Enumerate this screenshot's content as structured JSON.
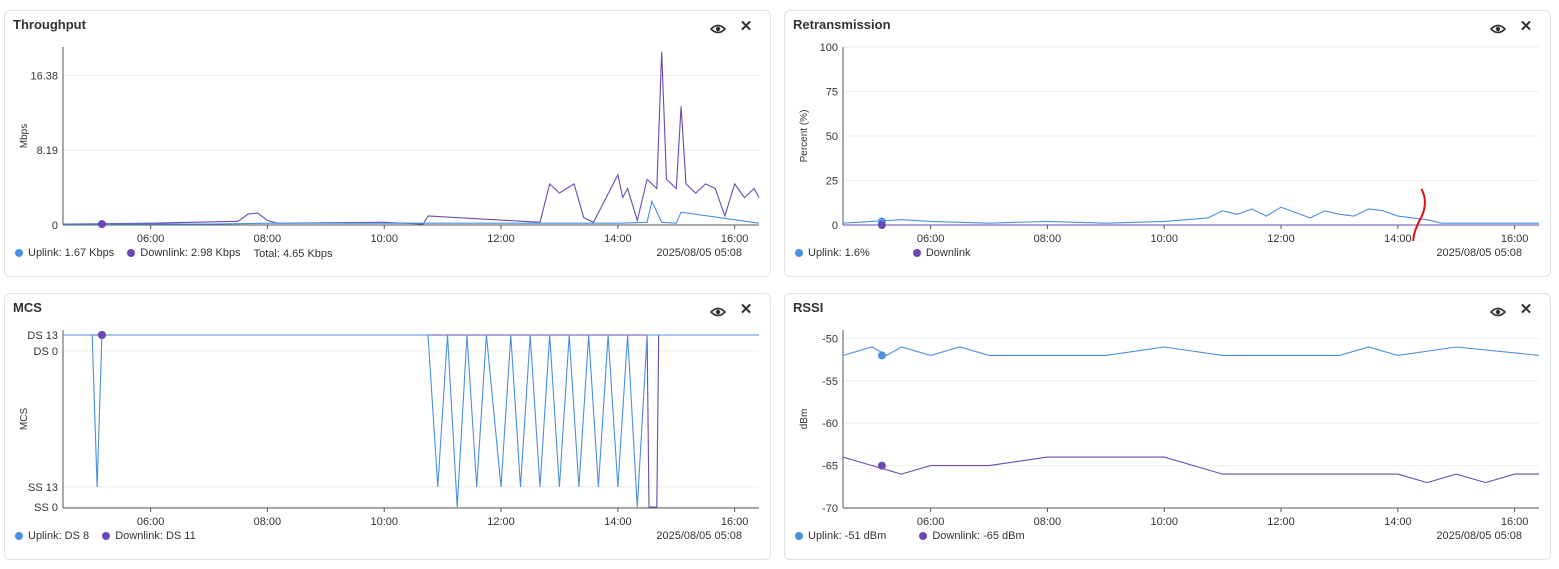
{
  "colors": {
    "uplink": "#4a90e2",
    "downlink": "#6b48b4",
    "annotation": "#e01010"
  },
  "x_ticks": [
    "06:00",
    "08:00",
    "10:00",
    "12:00",
    "14:00",
    "16:00"
  ],
  "panels": {
    "throughput": {
      "title": "Throughput",
      "ylabel": "Mbps",
      "y_ticks": [
        "0",
        "8.19",
        "16.38"
      ],
      "legend": {
        "uplink": "Uplink: 1.67 Kbps",
        "downlink": "Downlink: 2.98 Kbps",
        "total": "Total: 4.65 Kbps"
      },
      "timestamp": "2025/08/05 05:08"
    },
    "retransmission": {
      "title": "Retransmission",
      "ylabel": "Percent (%)",
      "y_ticks": [
        "0",
        "25",
        "50",
        "75",
        "100"
      ],
      "legend": {
        "uplink": "Uplink: 1.6%",
        "downlink": "Downlink"
      },
      "timestamp": "2025/08/05 05:08"
    },
    "mcs": {
      "title": "MCS",
      "ylabel": "MCS",
      "y_ticks": [
        "SS 0",
        "SS 13",
        "DS 0",
        "DS 13"
      ],
      "legend": {
        "uplink": "Uplink: DS 8",
        "downlink": "Downlink: DS 11"
      },
      "timestamp": "2025/08/05 05:08"
    },
    "rssi": {
      "title": "RSSI",
      "ylabel": "dBm",
      "y_ticks": [
        "-70",
        "-65",
        "-60",
        "-55",
        "-50"
      ],
      "legend": {
        "uplink": "Uplink: -51 dBm",
        "downlink": "Downlink: -65 dBm"
      },
      "timestamp": "2025/08/05 05:08"
    }
  },
  "chart_data": [
    {
      "type": "line",
      "title": "Throughput",
      "ylabel": "Mbps",
      "ylim": [
        0,
        19.5
      ],
      "x_range": [
        "04:30",
        "16:25"
      ],
      "series": [
        {
          "name": "Uplink",
          "x": [
            "04:30",
            "07:00",
            "08:00",
            "12:30",
            "14:00",
            "14:30",
            "14:35",
            "14:45",
            "15:00",
            "15:05",
            "16:25"
          ],
          "values": [
            0.1,
            0.1,
            0.2,
            0.2,
            0.2,
            0.3,
            2.6,
            0.3,
            0.2,
            1.4,
            0.2
          ]
        },
        {
          "name": "Downlink",
          "x": [
            "04:30",
            "06:00",
            "07:30",
            "07:40",
            "07:50",
            "08:00",
            "08:10",
            "10:00",
            "10:40",
            "10:45",
            "12:40",
            "12:50",
            "13:00",
            "13:15",
            "13:25",
            "13:35",
            "14:00",
            "14:05",
            "14:10",
            "14:20",
            "14:30",
            "14:40",
            "14:45",
            "14:50",
            "15:00",
            "15:05",
            "15:10",
            "15:20",
            "15:30",
            "15:40",
            "15:50",
            "16:00",
            "16:10",
            "16:20",
            "16:25"
          ],
          "values": [
            0.1,
            0.2,
            0.4,
            1.2,
            1.3,
            0.5,
            0.2,
            0.3,
            0.1,
            1.0,
            0.3,
            4.5,
            3.5,
            4.5,
            0.8,
            0.3,
            5.5,
            3.0,
            4.0,
            0.5,
            5.0,
            4.0,
            19.0,
            5.0,
            4.0,
            13.0,
            4.5,
            3.5,
            4.5,
            4.0,
            1.0,
            4.5,
            3.0,
            4.0,
            3.0
          ]
        }
      ]
    },
    {
      "type": "line",
      "title": "Retransmission",
      "ylabel": "Percent (%)",
      "ylim": [
        0,
        100
      ],
      "x_range": [
        "04:30",
        "16:25"
      ],
      "series": [
        {
          "name": "Uplink",
          "x": [
            "04:30",
            "05:00",
            "05:30",
            "06:00",
            "07:00",
            "08:00",
            "09:00",
            "10:00",
            "10:45",
            "11:00",
            "11:15",
            "11:30",
            "11:45",
            "12:00",
            "12:15",
            "12:30",
            "12:45",
            "13:00",
            "13:15",
            "13:30",
            "13:45",
            "14:00",
            "14:15",
            "14:30",
            "14:45",
            "15:00",
            "16:25"
          ],
          "values": [
            1,
            2,
            3,
            2,
            1,
            2,
            1,
            2,
            4,
            8,
            6,
            9,
            5,
            10,
            7,
            4,
            8,
            6,
            5,
            9,
            8,
            5,
            4,
            3,
            1,
            1,
            1
          ]
        },
        {
          "name": "Downlink",
          "x": [
            "04:30",
            "16:25"
          ],
          "values": [
            0,
            0
          ]
        }
      ]
    },
    {
      "type": "line",
      "title": "MCS",
      "ylabel": "MCS",
      "y_categories": [
        "SS 0",
        "SS 13",
        "DS 0",
        "DS 13"
      ],
      "x_range": [
        "04:30",
        "16:25"
      ],
      "series": [
        {
          "name": "Uplink",
          "x": [
            "04:30",
            "05:00",
            "05:05",
            "05:10",
            "07:00",
            "09:00",
            "10:45",
            "10:55",
            "11:05",
            "11:15",
            "11:25",
            "11:35",
            "11:45",
            "12:00",
            "12:10",
            "12:20",
            "12:30",
            "12:40",
            "12:50",
            "13:00",
            "13:10",
            "13:20",
            "13:30",
            "13:40",
            "13:50",
            "14:00",
            "14:10",
            "14:20",
            "14:30",
            "15:00",
            "16:25"
          ],
          "values": [
            "DS 13",
            "DS 13",
            "SS 13",
            "DS 13",
            "DS 13",
            "DS 13",
            "DS 13",
            "SS 13",
            "DS 13",
            "SS 0",
            "DS 13",
            "SS 13",
            "DS 13",
            "SS 13",
            "DS 13",
            "SS 13",
            "DS 13",
            "SS 13",
            "DS 13",
            "SS 13",
            "DS 13",
            "SS 13",
            "DS 13",
            "SS 13",
            "DS 13",
            "SS 13",
            "DS 13",
            "SS 0",
            "DS 13",
            "DS 13",
            "DS 13"
          ]
        },
        {
          "name": "Downlink",
          "x": [
            "04:30",
            "14:30",
            "14:32",
            "14:40",
            "14:42",
            "16:25"
          ],
          "values": [
            "DS 13",
            "DS 13",
            "SS 0",
            "SS 0",
            "DS 13",
            "DS 13"
          ]
        }
      ]
    },
    {
      "type": "line",
      "title": "RSSI",
      "ylabel": "dBm",
      "ylim": [
        -70,
        -49
      ],
      "x_range": [
        "04:30",
        "16:25"
      ],
      "series": [
        {
          "name": "Uplink",
          "x": [
            "04:30",
            "05:00",
            "05:15",
            "05:30",
            "06:00",
            "06:30",
            "07:00",
            "08:00",
            "09:00",
            "10:00",
            "11:00",
            "12:00",
            "13:00",
            "13:30",
            "14:00",
            "15:00",
            "16:25"
          ],
          "values": [
            -52,
            -51,
            -52,
            -51,
            -52,
            -51,
            -52,
            -52,
            -52,
            -51,
            -52,
            -52,
            -52,
            -51,
            -52,
            -51,
            -52
          ]
        },
        {
          "name": "Downlink",
          "x": [
            "04:30",
            "05:00",
            "05:30",
            "06:00",
            "06:30",
            "07:00",
            "08:00",
            "09:00",
            "10:00",
            "10:30",
            "11:00",
            "12:00",
            "13:00",
            "14:00",
            "14:30",
            "15:00",
            "15:30",
            "16:00",
            "16:25"
          ],
          "values": [
            -64,
            -65,
            -66,
            -65,
            -65,
            -65,
            -64,
            -64,
            -64,
            -65,
            -66,
            -66,
            -66,
            -66,
            -67,
            -66,
            -67,
            -66,
            -66
          ]
        }
      ]
    }
  ]
}
